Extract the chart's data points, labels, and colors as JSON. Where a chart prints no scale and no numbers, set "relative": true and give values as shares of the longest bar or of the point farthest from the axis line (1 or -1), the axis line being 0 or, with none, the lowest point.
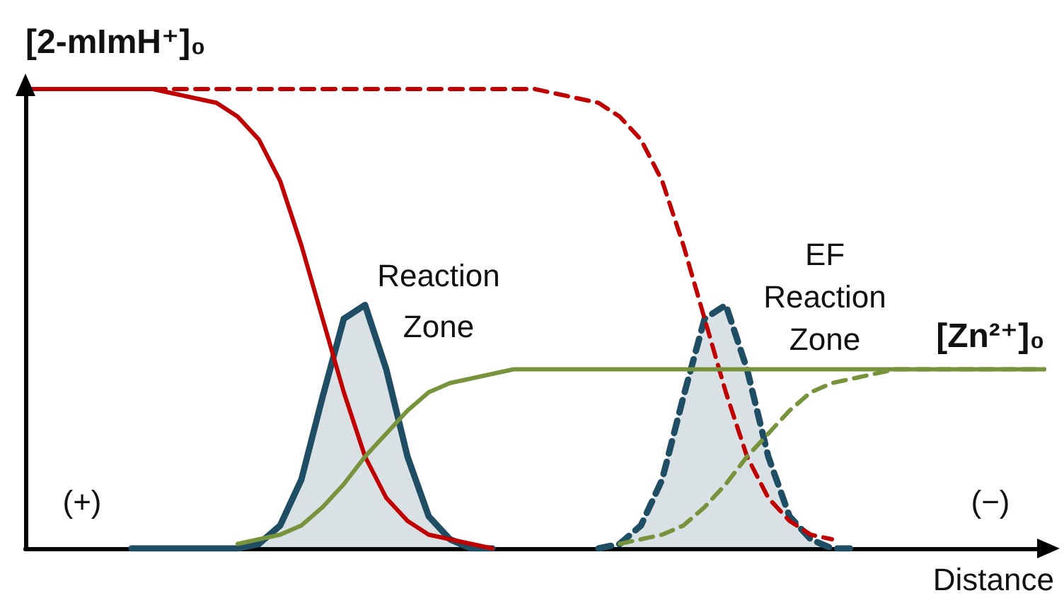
{
  "chart_data": {
    "type": "line",
    "relative": true,
    "xlabel": "Distance",
    "ylabel": "[2-mImH⁺]₀",
    "grid": false,
    "marker": "none",
    "categories": [
      null,
      null,
      null,
      null,
      null,
      null,
      null,
      null,
      null,
      null,
      null,
      null,
      null,
      null,
      null,
      null,
      null,
      null,
      null,
      null,
      null,
      null,
      null,
      null,
      null,
      null,
      null,
      null,
      null,
      null,
      null,
      null,
      null,
      null,
      null,
      null,
      null,
      null,
      null,
      null,
      null,
      null,
      null,
      null,
      null,
      null,
      null,
      null,
      null
    ],
    "annotations": [
      "Reaction Zone",
      "EF Reaction Zone",
      "[Zn²⁺]₀",
      "(+)",
      "(−)"
    ],
    "series": [
      {
        "type": "area",
        "color": "#1f4e64",
        "line_style": "solid",
        "values": [
          null,
          null,
          null,
          null,
          null,
          0,
          0,
          0,
          0,
          0,
          0,
          0.01,
          0.05,
          0.15,
          0.33,
          0.5,
          0.53,
          0.39,
          0.2,
          0.07,
          0.02,
          0,
          0,
          null,
          null,
          null,
          null,
          null,
          null,
          null,
          null,
          null,
          null,
          null,
          null,
          null,
          null,
          null,
          null,
          null,
          null,
          null,
          null,
          null,
          null,
          null,
          null,
          null,
          null
        ]
      },
      {
        "type": "area",
        "color": "#1f4e64",
        "line_style": "dashed",
        "values": [
          null,
          null,
          null,
          null,
          null,
          null,
          null,
          null,
          null,
          null,
          null,
          null,
          null,
          null,
          null,
          null,
          null,
          null,
          null,
          null,
          null,
          null,
          null,
          null,
          null,
          null,
          null,
          0,
          0.01,
          0.05,
          0.15,
          0.33,
          0.5,
          0.53,
          0.39,
          0.2,
          0.07,
          0.02,
          0,
          0,
          null,
          null,
          null,
          null,
          null,
          null,
          null,
          null,
          null
        ]
      },
      {
        "type": "line",
        "color": "#c00000",
        "line_style": "solid",
        "values": [
          1,
          1,
          1,
          1,
          1,
          1,
          1,
          0.99,
          0.98,
          0.97,
          0.94,
          0.89,
          0.8,
          0.66,
          0.5,
          0.34,
          0.2,
          0.11,
          0.06,
          0.03,
          0.02,
          0.01,
          0,
          null,
          null,
          null,
          null,
          null,
          null,
          null,
          null,
          null,
          null,
          null,
          null,
          null,
          null,
          null,
          null,
          null,
          null,
          null,
          null,
          null,
          null,
          null,
          null,
          null,
          null
        ]
      },
      {
        "type": "line",
        "color": "#c00000",
        "line_style": "dashed",
        "values": [
          1,
          1,
          1,
          1,
          1,
          1,
          1,
          1,
          1,
          1,
          1,
          1,
          1,
          1,
          1,
          1,
          1,
          1,
          1,
          1,
          1,
          1,
          1,
          1,
          1,
          0.99,
          0.98,
          0.97,
          0.94,
          0.89,
          0.8,
          0.66,
          0.5,
          0.34,
          0.2,
          0.11,
          0.06,
          0.03,
          0.02,
          null,
          null,
          null,
          null,
          null,
          null,
          null,
          null,
          null,
          null
        ]
      },
      {
        "type": "line",
        "color": "#77933c",
        "line_style": "solid",
        "values": [
          null,
          null,
          null,
          null,
          null,
          null,
          null,
          null,
          null,
          null,
          0.01,
          0.02,
          0.03,
          0.05,
          0.09,
          0.14,
          0.2,
          0.25,
          0.3,
          0.34,
          0.36,
          0.37,
          0.38,
          0.39,
          0.39,
          0.39,
          0.39,
          0.39,
          0.39,
          0.39,
          0.39,
          0.39,
          0.39,
          0.39,
          0.39,
          0.39,
          0.39,
          0.39,
          0.39,
          0.39,
          0.39,
          0.39,
          0.39,
          0.39,
          0.39,
          0.39,
          0.39,
          0.39,
          0.39
        ]
      },
      {
        "type": "line",
        "color": "#77933c",
        "line_style": "dashed",
        "values": [
          null,
          null,
          null,
          null,
          null,
          null,
          null,
          null,
          null,
          null,
          null,
          null,
          null,
          null,
          null,
          null,
          null,
          null,
          null,
          null,
          null,
          null,
          null,
          null,
          null,
          null,
          null,
          null,
          0.01,
          0.02,
          0.03,
          0.05,
          0.09,
          0.14,
          0.2,
          0.25,
          0.3,
          0.34,
          0.36,
          0.37,
          0.38,
          0.39,
          0.39,
          0.39,
          0.39,
          0.39,
          0.39,
          0.39,
          0.39
        ]
      }
    ]
  }
}
